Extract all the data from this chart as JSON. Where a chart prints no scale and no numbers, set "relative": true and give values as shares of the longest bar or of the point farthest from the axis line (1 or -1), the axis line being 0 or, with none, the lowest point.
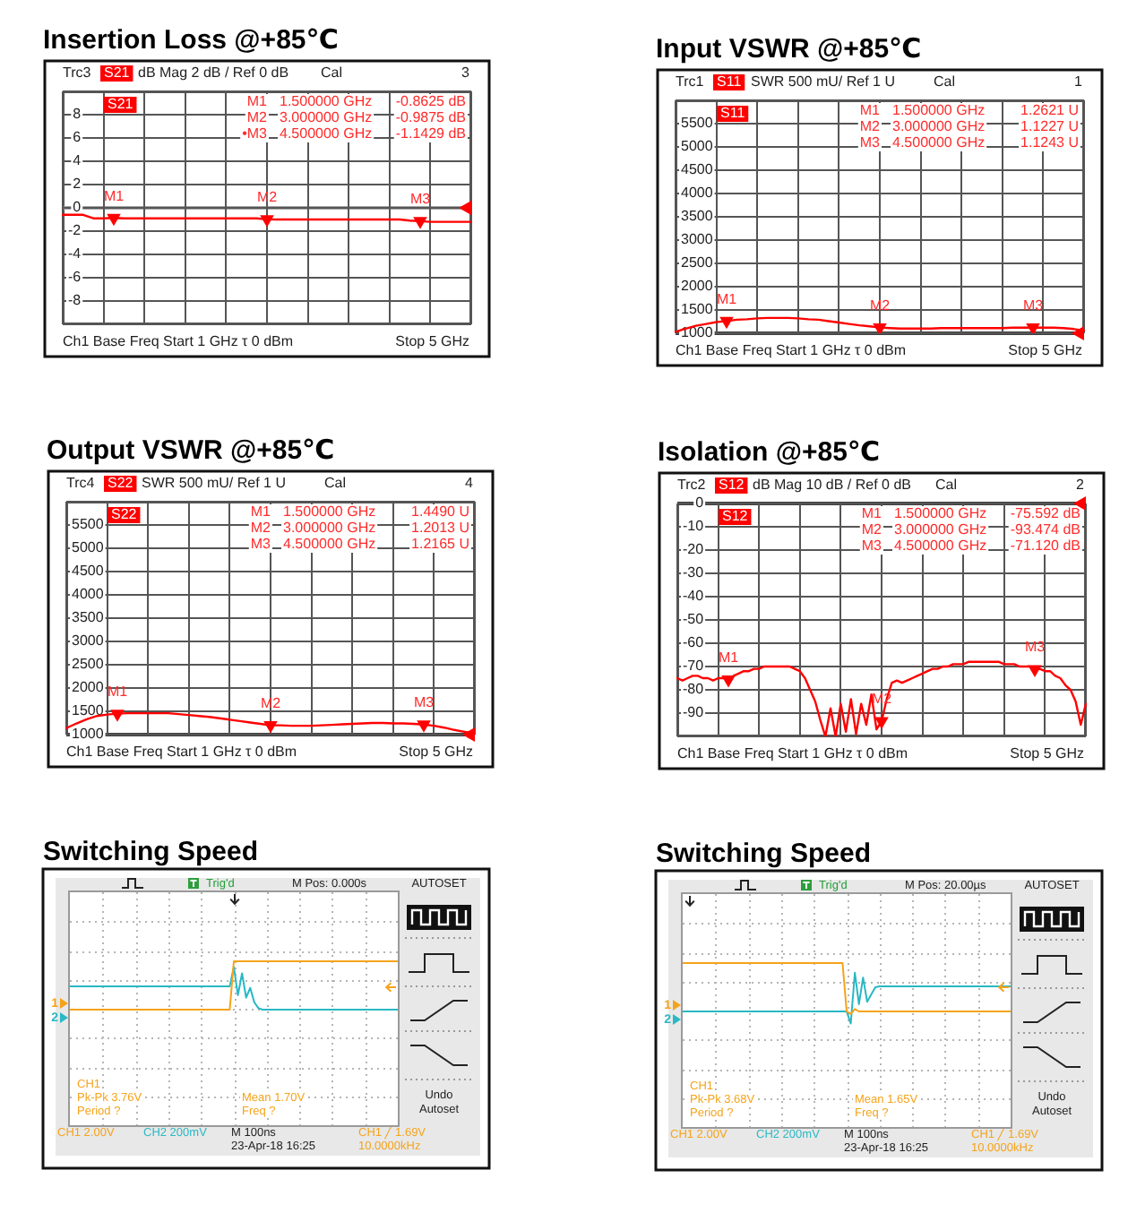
{
  "chart_data": [
    {
      "type": "line",
      "title": "Insertion Loss @+85℃",
      "categories": [
        null,
        null,
        null,
        null,
        null,
        null,
        null,
        null,
        null,
        null,
        null,
        null,
        null,
        null,
        null,
        null,
        null,
        null,
        null,
        null,
        null,
        null,
        null,
        null,
        null,
        null,
        null,
        null,
        null,
        null,
        null,
        null,
        null,
        null,
        null,
        null,
        null,
        null,
        null,
        null,
        null
      ],
      "series": [
        {
          "name": "S21",
          "color": "#ff0000",
          "values": [
            -0.6,
            -0.6,
            -0.6,
            -0.9,
            -0.9,
            -0.8625,
            -0.9,
            -0.9,
            -0.9,
            -0.9,
            -0.9,
            -0.9,
            -0.9,
            -0.9,
            -0.9,
            -0.9,
            -0.9,
            -0.9,
            -0.9,
            -0.9,
            -0.9875,
            -1.0,
            -1.0,
            -1.0,
            -1.0,
            -1.0,
            -1.0,
            -1.0,
            -1.0,
            -1.0,
            -1.0,
            -1.0,
            -1.0,
            -1.0,
            -1.1,
            -1.1429,
            -1.2,
            -1.2,
            -1.2,
            -1.2,
            -1.2
          ]
        },
        {
          "type": "scatter",
          "color": "#ff0000",
          "marker": "triangle",
          "values": [
            null,
            null,
            null,
            null,
            null,
            -0.8625,
            null,
            null,
            null,
            null,
            null,
            null,
            null,
            null,
            null,
            null,
            null,
            null,
            null,
            null,
            -0.9875,
            null,
            null,
            null,
            null,
            null,
            null,
            null,
            null,
            null,
            null,
            null,
            null,
            null,
            null,
            -1.1429,
            null,
            null,
            null,
            null,
            null
          ],
          "value_labels": [
            null,
            null,
            null,
            null,
            null,
            "M1",
            null,
            null,
            null,
            null,
            null,
            null,
            null,
            null,
            null,
            null,
            null,
            null,
            null,
            null,
            "M2",
            null,
            null,
            null,
            null,
            null,
            null,
            null,
            null,
            null,
            null,
            null,
            null,
            null,
            null,
            "M3",
            null,
            null,
            null,
            null,
            null
          ]
        }
      ],
      "ylim": [
        -10,
        10
      ],
      "yticks": [
        {
          "value": -10,
          "label": null
        },
        -8,
        -6,
        -4,
        -2,
        0,
        2,
        4,
        6,
        8,
        {
          "value": 10,
          "label": null
        }
      ],
      "grid": true,
      "legend": "top left",
      "marker": "none",
      "tick_labels": "y",
      "ref_lines": [
        {
          "axis": "y",
          "value": 0,
          "color": "#a6a6a6"
        }
      ],
      "annotations": [
        "Trc3",
        "dB Mag 2 dB / Ref 0 dB",
        "Cal",
        "3",
        "Ch1 Base Freq Start 1 GHz τ 0 dBm",
        "Stop 5 GHz",
        "M1",
        "1.500000 GHz",
        "-0.8625 dB",
        "M2",
        "3.000000 GHz",
        "-0.9875 dB",
        "•M3",
        "4.500000 GHz",
        "-1.1429 dB"
      ]
    },
    {
      "type": "line",
      "title": "Input VSWR @+85℃",
      "categories": [
        null,
        null,
        null,
        null,
        null,
        null,
        null,
        null,
        null,
        null,
        null,
        null,
        null,
        null,
        null,
        null,
        null,
        null,
        null,
        null,
        null,
        null,
        null,
        null,
        null,
        null,
        null,
        null,
        null,
        null,
        null,
        null,
        null,
        null,
        null,
        null,
        null,
        null,
        null,
        null,
        null
      ],
      "series": [
        {
          "name": "S11",
          "color": "#ff0000",
          "values": [
            1030,
            1100,
            1160,
            1200,
            1240,
            1262.1,
            1290,
            1300,
            1320,
            1330,
            1330,
            1330,
            1320,
            1300,
            1290,
            1260,
            1230,
            1200,
            1170,
            1150,
            1122.7,
            1110,
            1100,
            1100,
            1100,
            1100,
            1110,
            1110,
            1110,
            1110,
            1110,
            1110,
            1110,
            1120,
            1120,
            1124.3,
            1120,
            1120,
            1110,
            1090,
            1060
          ]
        },
        {
          "type": "scatter",
          "color": "#ff0000",
          "marker": "triangle",
          "values": [
            null,
            null,
            null,
            null,
            null,
            1262.1,
            null,
            null,
            null,
            null,
            null,
            null,
            null,
            null,
            null,
            null,
            null,
            null,
            null,
            null,
            1122.7,
            null,
            null,
            null,
            null,
            null,
            null,
            null,
            null,
            null,
            null,
            null,
            null,
            null,
            null,
            1124.3,
            null,
            null,
            null,
            null,
            null
          ],
          "value_labels": [
            null,
            null,
            null,
            null,
            null,
            "M1",
            null,
            null,
            null,
            null,
            null,
            null,
            null,
            null,
            null,
            null,
            null,
            null,
            null,
            null,
            "M2",
            null,
            null,
            null,
            null,
            null,
            null,
            null,
            null,
            null,
            null,
            null,
            null,
            null,
            null,
            "M3",
            null,
            null,
            null,
            null,
            null
          ]
        }
      ],
      "ylim": [
        1000,
        6000
      ],
      "yticks": [
        1000,
        1500,
        2000,
        2500,
        3000,
        3500,
        4000,
        4500,
        5000,
        5500,
        {
          "value": 6000,
          "label": null
        }
      ],
      "grid": true,
      "legend": "top left",
      "marker": "none",
      "tick_labels": "y",
      "ref_lines": [
        {
          "axis": "y",
          "value": 1000,
          "color": "#404040"
        }
      ],
      "annotations": [
        "Trc1",
        "SWR 500 mU/ Ref 1 U",
        "Cal",
        "1",
        "Ch1 Base Freq Start 1 GHz τ 0 dBm",
        "Stop 5 GHz",
        "M1",
        "1.500000 GHz",
        "1.2621 U",
        "M2",
        "3.000000 GHz",
        "1.1227 U",
        "M3",
        "4.500000 GHz",
        "1.1243 U"
      ]
    },
    {
      "type": "line",
      "title": "Output VSWR @+85℃",
      "categories": [
        null,
        null,
        null,
        null,
        null,
        null,
        null,
        null,
        null,
        null,
        null,
        null,
        null,
        null,
        null,
        null,
        null,
        null,
        null,
        null,
        null,
        null,
        null,
        null,
        null,
        null,
        null,
        null,
        null,
        null,
        null,
        null,
        null,
        null,
        null,
        null,
        null,
        null,
        null,
        null,
        null
      ],
      "series": [
        {
          "name": "S22",
          "color": "#ff0000",
          "values": [
            1140,
            1240,
            1330,
            1400,
            1430,
            1449,
            1460,
            1460,
            1460,
            1460,
            1460,
            1440,
            1420,
            1400,
            1380,
            1350,
            1320,
            1290,
            1260,
            1230,
            1201.3,
            1200,
            1190,
            1190,
            1190,
            1200,
            1210,
            1220,
            1230,
            1240,
            1250,
            1250,
            1240,
            1240,
            1230,
            1216.5,
            1190,
            1150,
            1100,
            1060,
            1020
          ]
        },
        {
          "type": "scatter",
          "color": "#ff0000",
          "marker": "triangle",
          "values": [
            null,
            null,
            null,
            null,
            null,
            1449,
            null,
            null,
            null,
            null,
            null,
            null,
            null,
            null,
            null,
            null,
            null,
            null,
            null,
            null,
            1201.3,
            null,
            null,
            null,
            null,
            null,
            null,
            null,
            null,
            null,
            null,
            null,
            null,
            null,
            null,
            1216.5,
            null,
            null,
            null,
            null,
            null
          ],
          "value_labels": [
            null,
            null,
            null,
            null,
            null,
            "M1",
            null,
            null,
            null,
            null,
            null,
            null,
            null,
            null,
            null,
            null,
            null,
            null,
            null,
            null,
            "M2",
            null,
            null,
            null,
            null,
            null,
            null,
            null,
            null,
            null,
            null,
            null,
            null,
            null,
            null,
            "M3",
            null,
            null,
            null,
            null,
            null
          ]
        }
      ],
      "ylim": [
        1000,
        6000
      ],
      "yticks": [
        1000,
        1500,
        2000,
        2500,
        3000,
        3500,
        4000,
        4500,
        5000,
        5500,
        {
          "value": 6000,
          "label": null
        }
      ],
      "grid": true,
      "legend": "top left",
      "marker": "none",
      "tick_labels": "y",
      "ref_lines": [
        {
          "axis": "y",
          "value": 1000,
          "color": "#404040"
        }
      ],
      "annotations": [
        "Trc4",
        "SWR 500 mU/ Ref 1 U",
        "Cal",
        "4",
        "Ch1 Base Freq Start 1 GHz τ 0 dBm",
        "Stop 5 GHz",
        "M1",
        "1.500000 GHz",
        "1.4490 U",
        "M2",
        "3.000000 GHz",
        "1.2013 U",
        "M3",
        "4.500000 GHz",
        "1.2165 U"
      ]
    },
    {
      "type": "line",
      "title": "Isolation @+85℃",
      "categories": [
        null,
        null,
        null,
        null,
        null,
        null,
        null,
        null,
        null,
        null,
        null,
        null,
        null,
        null,
        null,
        null,
        null,
        null,
        null,
        null,
        null,
        null,
        null,
        null,
        null,
        null,
        null,
        null,
        null,
        null,
        null,
        null,
        null,
        null,
        null,
        null,
        null,
        null,
        null,
        null,
        null,
        null,
        null,
        null,
        null,
        null,
        null,
        null,
        null,
        null,
        null,
        null,
        null,
        null,
        null,
        null,
        null,
        null,
        null,
        null,
        null,
        null,
        null,
        null,
        null,
        null,
        null,
        null,
        null,
        null,
        null,
        null,
        null,
        null,
        null,
        null,
        null,
        null,
        null,
        null,
        null
      ],
      "series": [
        {
          "name": "S12",
          "color": "#ff0000",
          "values": [
            -75,
            -76,
            -75,
            -74,
            -74,
            -75,
            -75,
            -76,
            -75,
            -75,
            -75.592,
            -74,
            -73,
            -72,
            -72,
            -71,
            -71,
            -70,
            -70,
            -70,
            -70,
            -70,
            -70,
            -71,
            -72,
            -75,
            -80,
            -85,
            -93,
            -100,
            -88,
            -100,
            -86,
            -98,
            -84,
            -99,
            -86,
            -95,
            -82,
            -97,
            -93.474,
            -84,
            -77,
            -76,
            -77,
            -76,
            -75,
            -74,
            -73,
            -72,
            -71,
            -71,
            -70,
            -70,
            -69,
            -69,
            -69,
            -68,
            -68,
            -68,
            -68,
            -68,
            -68,
            -68,
            -69,
            -69,
            -69,
            -70,
            -70,
            -70,
            -71.12,
            -71,
            -72,
            -72,
            -74,
            -75,
            -78,
            -80,
            -85,
            -95,
            -86
          ]
        },
        {
          "type": "scatter",
          "color": "#ff0000",
          "marker": "triangle",
          "values": [
            null,
            null,
            null,
            null,
            null,
            null,
            null,
            null,
            null,
            null,
            -75.592,
            null,
            null,
            null,
            null,
            null,
            null,
            null,
            null,
            null,
            null,
            null,
            null,
            null,
            null,
            null,
            null,
            null,
            null,
            null,
            null,
            null,
            null,
            null,
            null,
            null,
            null,
            null,
            null,
            null,
            -93.474,
            null,
            null,
            null,
            null,
            null,
            null,
            null,
            null,
            null,
            null,
            null,
            null,
            null,
            null,
            null,
            null,
            null,
            null,
            null,
            null,
            null,
            null,
            null,
            null,
            null,
            null,
            null,
            null,
            null,
            -71.12,
            null,
            null,
            null,
            null,
            null,
            null,
            null,
            null,
            null,
            null
          ],
          "value_labels": [
            null,
            null,
            null,
            null,
            null,
            null,
            null,
            null,
            null,
            null,
            "M1",
            null,
            null,
            null,
            null,
            null,
            null,
            null,
            null,
            null,
            null,
            null,
            null,
            null,
            null,
            null,
            null,
            null,
            null,
            null,
            null,
            null,
            null,
            null,
            null,
            null,
            null,
            null,
            null,
            null,
            "M2",
            null,
            null,
            null,
            null,
            null,
            null,
            null,
            null,
            null,
            null,
            null,
            null,
            null,
            null,
            null,
            null,
            null,
            null,
            null,
            null,
            null,
            null,
            null,
            null,
            null,
            null,
            null,
            null,
            null,
            "M3",
            null,
            null,
            null,
            null,
            null,
            null,
            null,
            null,
            null,
            null
          ]
        }
      ],
      "ylim": [
        -100,
        0
      ],
      "yticks": [
        {
          "value": -100,
          "label": null
        },
        -90,
        -80,
        -70,
        -60,
        -50,
        -40,
        -30,
        -20,
        -10,
        0
      ],
      "grid": true,
      "legend": "top left",
      "marker": "none",
      "tick_labels": "y",
      "ref_lines": [
        {
          "axis": "y",
          "value": 0,
          "color": "#404040"
        }
      ],
      "annotations": [
        "Trc2",
        "dB Mag 10 dB / Ref 0 dB",
        "Cal",
        "2",
        "Ch1 Base Freq Start 1 GHz τ 0 dBm",
        "Stop 5 GHz",
        "M1",
        "1.500000 GHz",
        "-75.592 dB",
        "M2",
        "3.000000 GHz",
        "-93.474 dB",
        "M3",
        "4.500000 GHz",
        "-71.120 dB"
      ]
    },
    {
      "type": "line",
      "title": "Switching Speed",
      "categories": [
        null,
        null,
        null,
        null,
        null,
        null,
        null,
        null,
        null,
        null,
        null,
        null,
        null,
        null,
        null,
        null,
        null,
        null,
        null,
        null,
        null,
        null,
        null,
        null,
        null,
        null,
        null,
        null,
        null,
        null,
        null,
        null,
        null,
        null,
        null,
        null,
        null,
        null,
        null,
        null,
        null,
        null,
        null,
        null,
        null,
        null,
        null,
        null,
        null,
        null,
        null,
        null,
        null,
        null,
        null,
        null,
        null,
        null,
        null,
        null,
        null,
        null,
        null,
        null,
        null,
        null,
        null,
        null,
        null,
        null,
        null,
        null,
        null,
        null,
        null,
        null,
        null,
        null,
        null,
        null,
        null
      ],
      "series": [
        {
          "name": "1",
          "color": "#f5a31a",
          "values": [
            0,
            0,
            0,
            0,
            0,
            0,
            0,
            0,
            0,
            0,
            0,
            0,
            0,
            0,
            0,
            0,
            0,
            0,
            0,
            0,
            0,
            0,
            0,
            0,
            0,
            0,
            0,
            0,
            0,
            0,
            0,
            0,
            0,
            0,
            0,
            0,
            0,
            0,
            0,
            0,
            1,
            1,
            1,
            1,
            1,
            1,
            1,
            1,
            1,
            1,
            1,
            1,
            1,
            1,
            1,
            1,
            1,
            1,
            1,
            1,
            1,
            1,
            1,
            1,
            1,
            1,
            1,
            1,
            1,
            1,
            1,
            1,
            1,
            1,
            1,
            1,
            1,
            1,
            1,
            1,
            1
          ]
        },
        {
          "name": "2",
          "color": "#29b8c4",
          "values": [
            0.48,
            0.48,
            0.48,
            0.48,
            0.48,
            0.48,
            0.48,
            0.48,
            0.48,
            0.48,
            0.48,
            0.48,
            0.48,
            0.48,
            0.48,
            0.48,
            0.48,
            0.48,
            0.48,
            0.48,
            0.48,
            0.48,
            0.48,
            0.48,
            0.48,
            0.48,
            0.48,
            0.48,
            0.48,
            0.48,
            0.48,
            0.48,
            0.48,
            0.48,
            0.48,
            0.48,
            0.48,
            0.48,
            0.48,
            0.48,
            0.88,
            0.3,
            0.75,
            0.25,
            0.45,
            0.15,
            0.03,
            0,
            0,
            0,
            0,
            0,
            0,
            0,
            0,
            0,
            0,
            0,
            0,
            0,
            0,
            0,
            0,
            0,
            0,
            0,
            0,
            0,
            0,
            0,
            0,
            0,
            0,
            0,
            0,
            0,
            0,
            0,
            0,
            0,
            0
          ]
        }
      ],
      "relative": true,
      "grid": true,
      "legend": "left",
      "marker": "none",
      "tick_labels": false,
      "annotations": [
        "Trig'd",
        "M Pos: 0.000s",
        "AUTOSET",
        "Undo",
        "Autoset",
        "CH1",
        "Pk-Pk 3.76V",
        "Period ?",
        "Mean 1.70V",
        "Freq ?",
        "CH1 2.00V",
        "CH2 200mV",
        "M 100ns",
        "23-Apr-18 16:25",
        "CH1 ╱ 1.69V",
        "10.0000kHz"
      ]
    },
    {
      "type": "line",
      "title": "Switching Speed",
      "categories": [
        null,
        null,
        null,
        null,
        null,
        null,
        null,
        null,
        null,
        null,
        null,
        null,
        null,
        null,
        null,
        null,
        null,
        null,
        null,
        null,
        null,
        null,
        null,
        null,
        null,
        null,
        null,
        null,
        null,
        null,
        null,
        null,
        null,
        null,
        null,
        null,
        null,
        null,
        null,
        null,
        null,
        null,
        null,
        null,
        null,
        null,
        null,
        null,
        null,
        null,
        null,
        null,
        null,
        null,
        null,
        null,
        null,
        null,
        null,
        null,
        null,
        null,
        null,
        null,
        null,
        null,
        null,
        null,
        null,
        null,
        null,
        null,
        null,
        null,
        null,
        null,
        null,
        null,
        null,
        null,
        null
      ],
      "series": [
        {
          "name": "1",
          "color": "#f5a31a",
          "values": [
            1,
            1,
            1,
            1,
            1,
            1,
            1,
            1,
            1,
            1,
            1,
            1,
            1,
            1,
            1,
            1,
            1,
            1,
            1,
            1,
            1,
            1,
            1,
            1,
            1,
            1,
            1,
            1,
            1,
            1,
            1,
            1,
            1,
            1,
            1,
            1,
            1,
            1,
            1,
            1,
            0,
            -0.05,
            0.05,
            0,
            0,
            0,
            0,
            0,
            0,
            0,
            0,
            0,
            0,
            0,
            0,
            0,
            0,
            0,
            0,
            0,
            0,
            0,
            0,
            0,
            0,
            0,
            0,
            0,
            0,
            0,
            0,
            0,
            0,
            0,
            0,
            0,
            0,
            0,
            0,
            0,
            0
          ]
        },
        {
          "name": "2",
          "color": "#29b8c4",
          "values": [
            0,
            0,
            0,
            0,
            0,
            0,
            0,
            0,
            0,
            0,
            0,
            0,
            0,
            0,
            0,
            0,
            0,
            0,
            0,
            0,
            0,
            0,
            0,
            0,
            0,
            0,
            0,
            0,
            0,
            0,
            0,
            0,
            0,
            0,
            0,
            0,
            0,
            0,
            0,
            0,
            0,
            -0.25,
            0.8,
            0.15,
            0.7,
            0.2,
            0.35,
            0.5,
            0.52,
            0.52,
            0.52,
            0.52,
            0.52,
            0.52,
            0.52,
            0.52,
            0.52,
            0.52,
            0.52,
            0.52,
            0.52,
            0.52,
            0.52,
            0.52,
            0.52,
            0.52,
            0.52,
            0.52,
            0.52,
            0.52,
            0.52,
            0.52,
            0.52,
            0.52,
            0.52,
            0.52,
            0.52,
            0.52,
            0.52,
            0.52,
            0.52
          ]
        }
      ],
      "relative": true,
      "grid": true,
      "legend": "left",
      "marker": "none",
      "tick_labels": false,
      "annotations": [
        "Trig'd",
        "M Pos: 20.00µs",
        "AUTOSET",
        "Undo",
        "Autoset",
        "CH1",
        "Pk-Pk 3.68V",
        "Period ?",
        "Mean 1.65V",
        "Freq ?",
        "CH1 2.00V",
        "CH2 200mV",
        "M 100ns",
        "23-Apr-18 16:25",
        "CH1 ╱ 1.69V",
        "10.0000kHz"
      ]
    }
  ]
}
